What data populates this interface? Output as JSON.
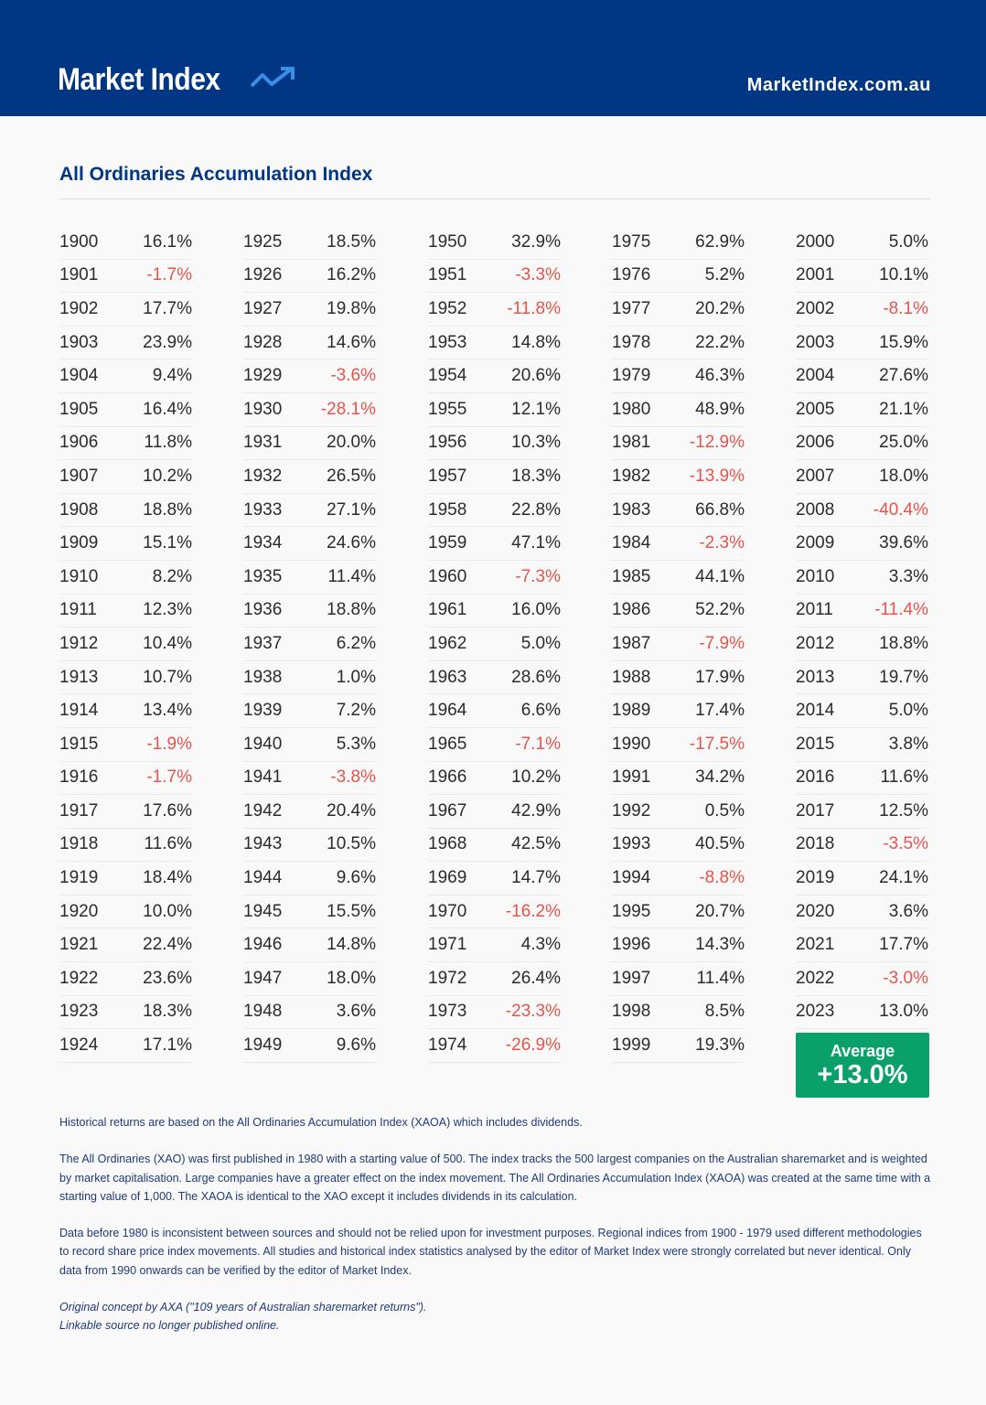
{
  "header": {
    "logo_text": "Market Index",
    "site": "MarketIndex.com.au"
  },
  "title": "All Ordinaries Accumulation Index",
  "colors": {
    "brand": "#003683",
    "negative": "#e8534c",
    "average_bg": "#0aa06a",
    "logo_arrow": "#3a8ee6"
  },
  "columns": [
    [
      [
        "1900",
        "16.1%"
      ],
      [
        "1901",
        "-1.7%"
      ],
      [
        "1902",
        "17.7%"
      ],
      [
        "1903",
        "23.9%"
      ],
      [
        "1904",
        "9.4%"
      ],
      [
        "1905",
        "16.4%"
      ],
      [
        "1906",
        "11.8%"
      ],
      [
        "1907",
        "10.2%"
      ],
      [
        "1908",
        "18.8%"
      ],
      [
        "1909",
        "15.1%"
      ],
      [
        "1910",
        "8.2%"
      ],
      [
        "1911",
        "12.3%"
      ],
      [
        "1912",
        "10.4%"
      ],
      [
        "1913",
        "10.7%"
      ],
      [
        "1914",
        "13.4%"
      ],
      [
        "1915",
        "-1.9%"
      ],
      [
        "1916",
        "-1.7%"
      ],
      [
        "1917",
        "17.6%"
      ],
      [
        "1918",
        "11.6%"
      ],
      [
        "1919",
        "18.4%"
      ],
      [
        "1920",
        "10.0%"
      ],
      [
        "1921",
        "22.4%"
      ],
      [
        "1922",
        "23.6%"
      ],
      [
        "1923",
        "18.3%"
      ],
      [
        "1924",
        "17.1%"
      ]
    ],
    [
      [
        "1925",
        "18.5%"
      ],
      [
        "1926",
        "16.2%"
      ],
      [
        "1927",
        "19.8%"
      ],
      [
        "1928",
        "14.6%"
      ],
      [
        "1929",
        "-3.6%"
      ],
      [
        "1930",
        "-28.1%"
      ],
      [
        "1931",
        "20.0%"
      ],
      [
        "1932",
        "26.5%"
      ],
      [
        "1933",
        "27.1%"
      ],
      [
        "1934",
        "24.6%"
      ],
      [
        "1935",
        "11.4%"
      ],
      [
        "1936",
        "18.8%"
      ],
      [
        "1937",
        "6.2%"
      ],
      [
        "1938",
        "1.0%"
      ],
      [
        "1939",
        "7.2%"
      ],
      [
        "1940",
        "5.3%"
      ],
      [
        "1941",
        "-3.8%"
      ],
      [
        "1942",
        "20.4%"
      ],
      [
        "1943",
        "10.5%"
      ],
      [
        "1944",
        "9.6%"
      ],
      [
        "1945",
        "15.5%"
      ],
      [
        "1946",
        "14.8%"
      ],
      [
        "1947",
        "18.0%"
      ],
      [
        "1948",
        "3.6%"
      ],
      [
        "1949",
        "9.6%"
      ]
    ],
    [
      [
        "1950",
        "32.9%"
      ],
      [
        "1951",
        "-3.3%"
      ],
      [
        "1952",
        "-11.8%"
      ],
      [
        "1953",
        "14.8%"
      ],
      [
        "1954",
        "20.6%"
      ],
      [
        "1955",
        "12.1%"
      ],
      [
        "1956",
        "10.3%"
      ],
      [
        "1957",
        "18.3%"
      ],
      [
        "1958",
        "22.8%"
      ],
      [
        "1959",
        "47.1%"
      ],
      [
        "1960",
        "-7.3%"
      ],
      [
        "1961",
        "16.0%"
      ],
      [
        "1962",
        "5.0%"
      ],
      [
        "1963",
        "28.6%"
      ],
      [
        "1964",
        "6.6%"
      ],
      [
        "1965",
        "-7.1%"
      ],
      [
        "1966",
        "10.2%"
      ],
      [
        "1967",
        "42.9%"
      ],
      [
        "1968",
        "42.5%"
      ],
      [
        "1969",
        "14.7%"
      ],
      [
        "1970",
        "-16.2%"
      ],
      [
        "1971",
        "4.3%"
      ],
      [
        "1972",
        "26.4%"
      ],
      [
        "1973",
        "-23.3%"
      ],
      [
        "1974",
        "-26.9%"
      ]
    ],
    [
      [
        "1975",
        "62.9%"
      ],
      [
        "1976",
        "5.2%"
      ],
      [
        "1977",
        "20.2%"
      ],
      [
        "1978",
        "22.2%"
      ],
      [
        "1979",
        "46.3%"
      ],
      [
        "1980",
        "48.9%"
      ],
      [
        "1981",
        "-12.9%"
      ],
      [
        "1982",
        "-13.9%"
      ],
      [
        "1983",
        "66.8%"
      ],
      [
        "1984",
        "-2.3%"
      ],
      [
        "1985",
        "44.1%"
      ],
      [
        "1986",
        "52.2%"
      ],
      [
        "1987",
        "-7.9%"
      ],
      [
        "1988",
        "17.9%"
      ],
      [
        "1989",
        "17.4%"
      ],
      [
        "1990",
        "-17.5%"
      ],
      [
        "1991",
        "34.2%"
      ],
      [
        "1992",
        "0.5%"
      ],
      [
        "1993",
        "40.5%"
      ],
      [
        "1994",
        "-8.8%"
      ],
      [
        "1995",
        "20.7%"
      ],
      [
        "1996",
        "14.3%"
      ],
      [
        "1997",
        "11.4%"
      ],
      [
        "1998",
        "8.5%"
      ],
      [
        "1999",
        "19.3%"
      ]
    ],
    [
      [
        "2000",
        "5.0%"
      ],
      [
        "2001",
        "10.1%"
      ],
      [
        "2002",
        "-8.1%"
      ],
      [
        "2003",
        "15.9%"
      ],
      [
        "2004",
        "27.6%"
      ],
      [
        "2005",
        "21.1%"
      ],
      [
        "2006",
        "25.0%"
      ],
      [
        "2007",
        "18.0%"
      ],
      [
        "2008",
        "-40.4%"
      ],
      [
        "2009",
        "39.6%"
      ],
      [
        "2010",
        "3.3%"
      ],
      [
        "2011",
        "-11.4%"
      ],
      [
        "2012",
        "18.8%"
      ],
      [
        "2013",
        "19.7%"
      ],
      [
        "2014",
        "5.0%"
      ],
      [
        "2015",
        "3.8%"
      ],
      [
        "2016",
        "11.6%"
      ],
      [
        "2017",
        "12.5%"
      ],
      [
        "2018",
        "-3.5%"
      ],
      [
        "2019",
        "24.1%"
      ],
      [
        "2020",
        "3.6%"
      ],
      [
        "2021",
        "17.7%"
      ],
      [
        "2022",
        "-3.0%"
      ],
      [
        "2023",
        "13.0%"
      ]
    ]
  ],
  "average": {
    "label": "Average",
    "value": "+13.0%"
  },
  "notes": {
    "p1": "Historical returns are based on the All Ordinaries Accumulation Index (XAOA) which includes dividends.",
    "p2": "The All Ordinaries (XAO) was first published in 1980 with a starting value of 500. The index tracks the 500 largest companies on the Australian sharemarket and is weighted by market capitalisation. Large companies have a greater effect on the index movement. The All Ordinaries Accumulation Index (XAOA) was created at the same time with a starting value of 1,000. The XAOA is identical to the XAO except it includes dividends in its calculation.",
    "p3": "Data before 1980 is inconsistent between sources and should not be relied upon for investment purposes. Regional indices from 1900 - 1979 used different methodologies to record share price index movements. All studies and historical index statistics analysed by the editor of Market Index were strongly correlated but never identical. Only data from 1990 onwards can be verified by the editor of Market Index.",
    "credit1": "Original concept by AXA (\"109 years of Australian sharemarket returns\").",
    "credit2": "Linkable source no longer published online."
  }
}
